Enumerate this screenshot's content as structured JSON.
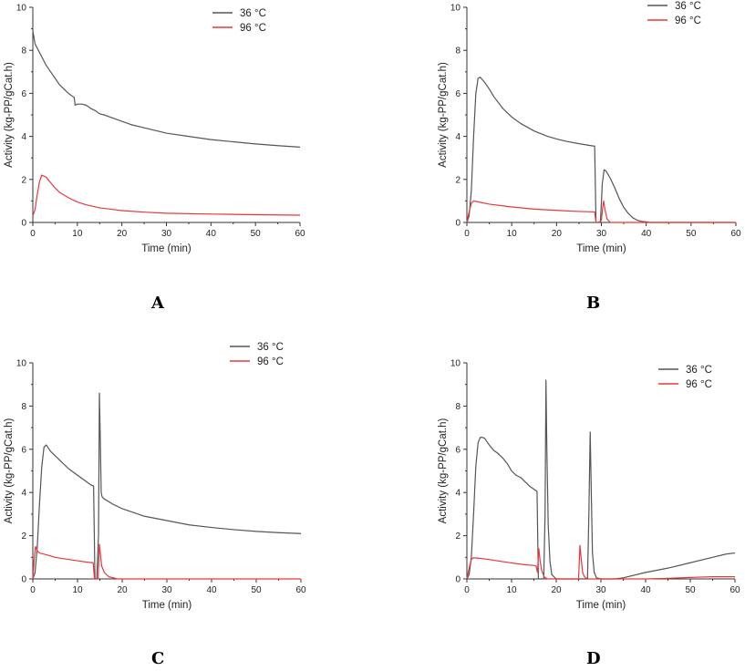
{
  "figure": {
    "panel_letters": [
      "A",
      "B",
      "C",
      "D"
    ]
  },
  "colors": {
    "series_36": "#555555",
    "series_96": "#e8363c",
    "axis": "#333333"
  },
  "chart_data": [
    {
      "panel": "A",
      "type": "line",
      "xlabel": "Time (min)",
      "ylabel": "Activity (kg-PP/gCat.h)",
      "xlim": [
        0,
        60
      ],
      "ylim": [
        0,
        10
      ],
      "xticks": [
        0,
        10,
        20,
        30,
        40,
        50,
        60
      ],
      "yticks": [
        0,
        2,
        4,
        6,
        8,
        10
      ],
      "legend": [
        "36 °C",
        "96 °C"
      ],
      "series": [
        {
          "name": "36 °C",
          "x": [
            0,
            0.5,
            1,
            2,
            3,
            4,
            5,
            6,
            7,
            8,
            9,
            9.3,
            9.5,
            10,
            11,
            12,
            13,
            14,
            15,
            16,
            18,
            20,
            22,
            25,
            28,
            30,
            35,
            40,
            45,
            50,
            55,
            60
          ],
          "y": [
            8.9,
            8.3,
            8.1,
            7.7,
            7.3,
            7.0,
            6.7,
            6.4,
            6.2,
            6.0,
            5.85,
            5.8,
            5.45,
            5.5,
            5.5,
            5.45,
            5.3,
            5.2,
            5.05,
            5.0,
            4.85,
            4.7,
            4.55,
            4.4,
            4.25,
            4.15,
            4.0,
            3.85,
            3.75,
            3.65,
            3.57,
            3.5
          ]
        },
        {
          "name": "96 °C",
          "x": [
            0,
            0.5,
            1,
            1.5,
            2,
            3,
            4,
            5,
            6,
            8,
            10,
            12,
            15,
            20,
            25,
            30,
            40,
            50,
            60
          ],
          "y": [
            0.3,
            0.6,
            1.3,
            1.9,
            2.2,
            2.1,
            1.85,
            1.6,
            1.4,
            1.15,
            0.95,
            0.82,
            0.68,
            0.55,
            0.48,
            0.43,
            0.39,
            0.36,
            0.34
          ]
        }
      ]
    },
    {
      "panel": "B",
      "type": "line",
      "xlabel": "Time (min)",
      "ylabel": "Activity (kg-PP/gCat.h)",
      "xlim": [
        0,
        60
      ],
      "ylim": [
        0,
        10
      ],
      "xticks": [
        0,
        10,
        20,
        30,
        40,
        50,
        60
      ],
      "yticks": [
        0,
        2,
        4,
        6,
        8,
        10
      ],
      "legend": [
        "36 °C",
        "96 °C"
      ],
      "series": [
        {
          "name": "36 °C",
          "x": [
            0,
            0.5,
            1,
            1.5,
            2,
            2.5,
            3,
            4,
            5,
            6,
            8,
            10,
            12,
            15,
            18,
            20,
            22,
            25,
            28,
            28.5,
            28.8,
            29.2,
            29.8,
            30.2,
            30.6,
            31,
            32,
            33,
            34,
            35,
            36,
            37,
            38,
            39,
            40,
            41,
            60
          ],
          "y": [
            0,
            0.3,
            1.5,
            4.0,
            6.0,
            6.7,
            6.75,
            6.5,
            6.2,
            5.85,
            5.3,
            4.9,
            4.6,
            4.25,
            4.0,
            3.88,
            3.78,
            3.66,
            3.56,
            3.55,
            0,
            0,
            0.05,
            1.8,
            2.45,
            2.4,
            2.05,
            1.6,
            1.1,
            0.7,
            0.42,
            0.22,
            0.1,
            0.05,
            0.03,
            0,
            0
          ]
        },
        {
          "name": "96 °C",
          "x": [
            0,
            0.5,
            1,
            1.5,
            2,
            5,
            10,
            15,
            20,
            25,
            28.5,
            28.8,
            29.5,
            30,
            30.3,
            30.5,
            30.8,
            31.3,
            32,
            60
          ],
          "y": [
            0,
            0.5,
            0.9,
            1.0,
            0.98,
            0.85,
            0.72,
            0.62,
            0.56,
            0.51,
            0.49,
            0,
            0,
            0.1,
            0.7,
            1.0,
            0.6,
            0.15,
            0,
            0
          ]
        }
      ]
    },
    {
      "panel": "C",
      "type": "line",
      "xlabel": "Time (min)",
      "ylabel": "Activity (kg-PP/gCat.h)",
      "xlim": [
        0,
        60
      ],
      "ylim": [
        0,
        10
      ],
      "xticks": [
        0,
        10,
        20,
        30,
        40,
        50,
        60
      ],
      "yticks": [
        0,
        2,
        4,
        6,
        8,
        10
      ],
      "legend": [
        "36 °C",
        "96 °C"
      ],
      "series": [
        {
          "name": "36 °C",
          "x": [
            0,
            0.5,
            1,
            1.5,
            2,
            2.5,
            3,
            4,
            5,
            6,
            8,
            10,
            12,
            13,
            13.6,
            13.9,
            14.3,
            14.7,
            14.9,
            15.1,
            15.3,
            15.5,
            16,
            18,
            20,
            25,
            30,
            35,
            40,
            45,
            50,
            55,
            60
          ],
          "y": [
            0,
            0.3,
            1.5,
            3.5,
            5.2,
            6.1,
            6.2,
            5.9,
            5.7,
            5.5,
            5.1,
            4.8,
            4.5,
            4.35,
            4.3,
            0,
            0,
            2.0,
            8.6,
            6.5,
            4.0,
            3.8,
            3.7,
            3.45,
            3.25,
            2.9,
            2.7,
            2.5,
            2.38,
            2.28,
            2.2,
            2.14,
            2.1
          ]
        },
        {
          "name": "96 °C",
          "x": [
            0,
            0.3,
            0.6,
            1,
            1.5,
            3,
            5,
            8,
            10,
            12,
            13.5,
            13.8,
            14.6,
            14.9,
            15.1,
            15.4,
            16,
            17,
            19,
            60
          ],
          "y": [
            0,
            0.9,
            1.5,
            1.3,
            1.2,
            1.12,
            1.0,
            0.9,
            0.84,
            0.78,
            0.75,
            0,
            0,
            1.6,
            1.2,
            0.6,
            0.3,
            0.1,
            0,
            0
          ]
        }
      ]
    },
    {
      "panel": "D",
      "type": "line",
      "xlabel": "Time (min)",
      "ylabel": "Activity (kg-PP/gCat.h)",
      "xlim": [
        0,
        60
      ],
      "ylim": [
        0,
        10
      ],
      "xticks": [
        0,
        10,
        20,
        30,
        40,
        50,
        60
      ],
      "yticks": [
        0,
        2,
        4,
        6,
        8,
        10
      ],
      "legend": [
        "36 °C",
        "96 °C"
      ],
      "series": [
        {
          "name": "36 °C",
          "x": [
            0,
            0.5,
            1,
            1.5,
            2,
            2.5,
            3,
            3.5,
            4,
            5,
            6,
            7,
            8,
            9,
            10,
            11,
            12,
            13,
            14,
            15,
            15.7,
            16,
            17.2,
            17.5,
            17.7,
            17.9,
            18.2,
            18.6,
            19,
            20,
            27,
            27.3,
            27.6,
            27.8,
            28.1,
            28.5,
            29,
            30,
            33,
            35,
            40,
            45,
            50,
            55,
            58,
            60
          ],
          "y": [
            0,
            0.2,
            1.0,
            3.0,
            5.2,
            6.3,
            6.55,
            6.55,
            6.5,
            6.2,
            5.95,
            5.8,
            5.6,
            5.35,
            5.0,
            4.8,
            4.7,
            4.5,
            4.3,
            4.15,
            4.05,
            0,
            0,
            3.0,
            9.2,
            6.0,
            2.5,
            0.8,
            0.2,
            0,
            0,
            3.0,
            6.8,
            4.5,
            1.2,
            0.3,
            0.05,
            0,
            0,
            0.05,
            0.3,
            0.5,
            0.75,
            1.0,
            1.15,
            1.2
          ]
        },
        {
          "name": "96 °C",
          "x": [
            0,
            0.5,
            1,
            1.5,
            3,
            5,
            8,
            10,
            12,
            15,
            15.5,
            15.8,
            16.1,
            16.4,
            16.8,
            17.3,
            18,
            25,
            25.3,
            25.6,
            25.9,
            26.3,
            27,
            40,
            45,
            50,
            55,
            60
          ],
          "y": [
            0,
            0.5,
            0.9,
            0.98,
            0.95,
            0.9,
            0.8,
            0.74,
            0.68,
            0.62,
            0.6,
            0.3,
            1.4,
            0.8,
            0.35,
            0.1,
            0,
            0,
            1.55,
            0.9,
            0.3,
            0.1,
            0,
            0,
            0.03,
            0.07,
            0.1,
            0.1
          ]
        }
      ]
    }
  ]
}
